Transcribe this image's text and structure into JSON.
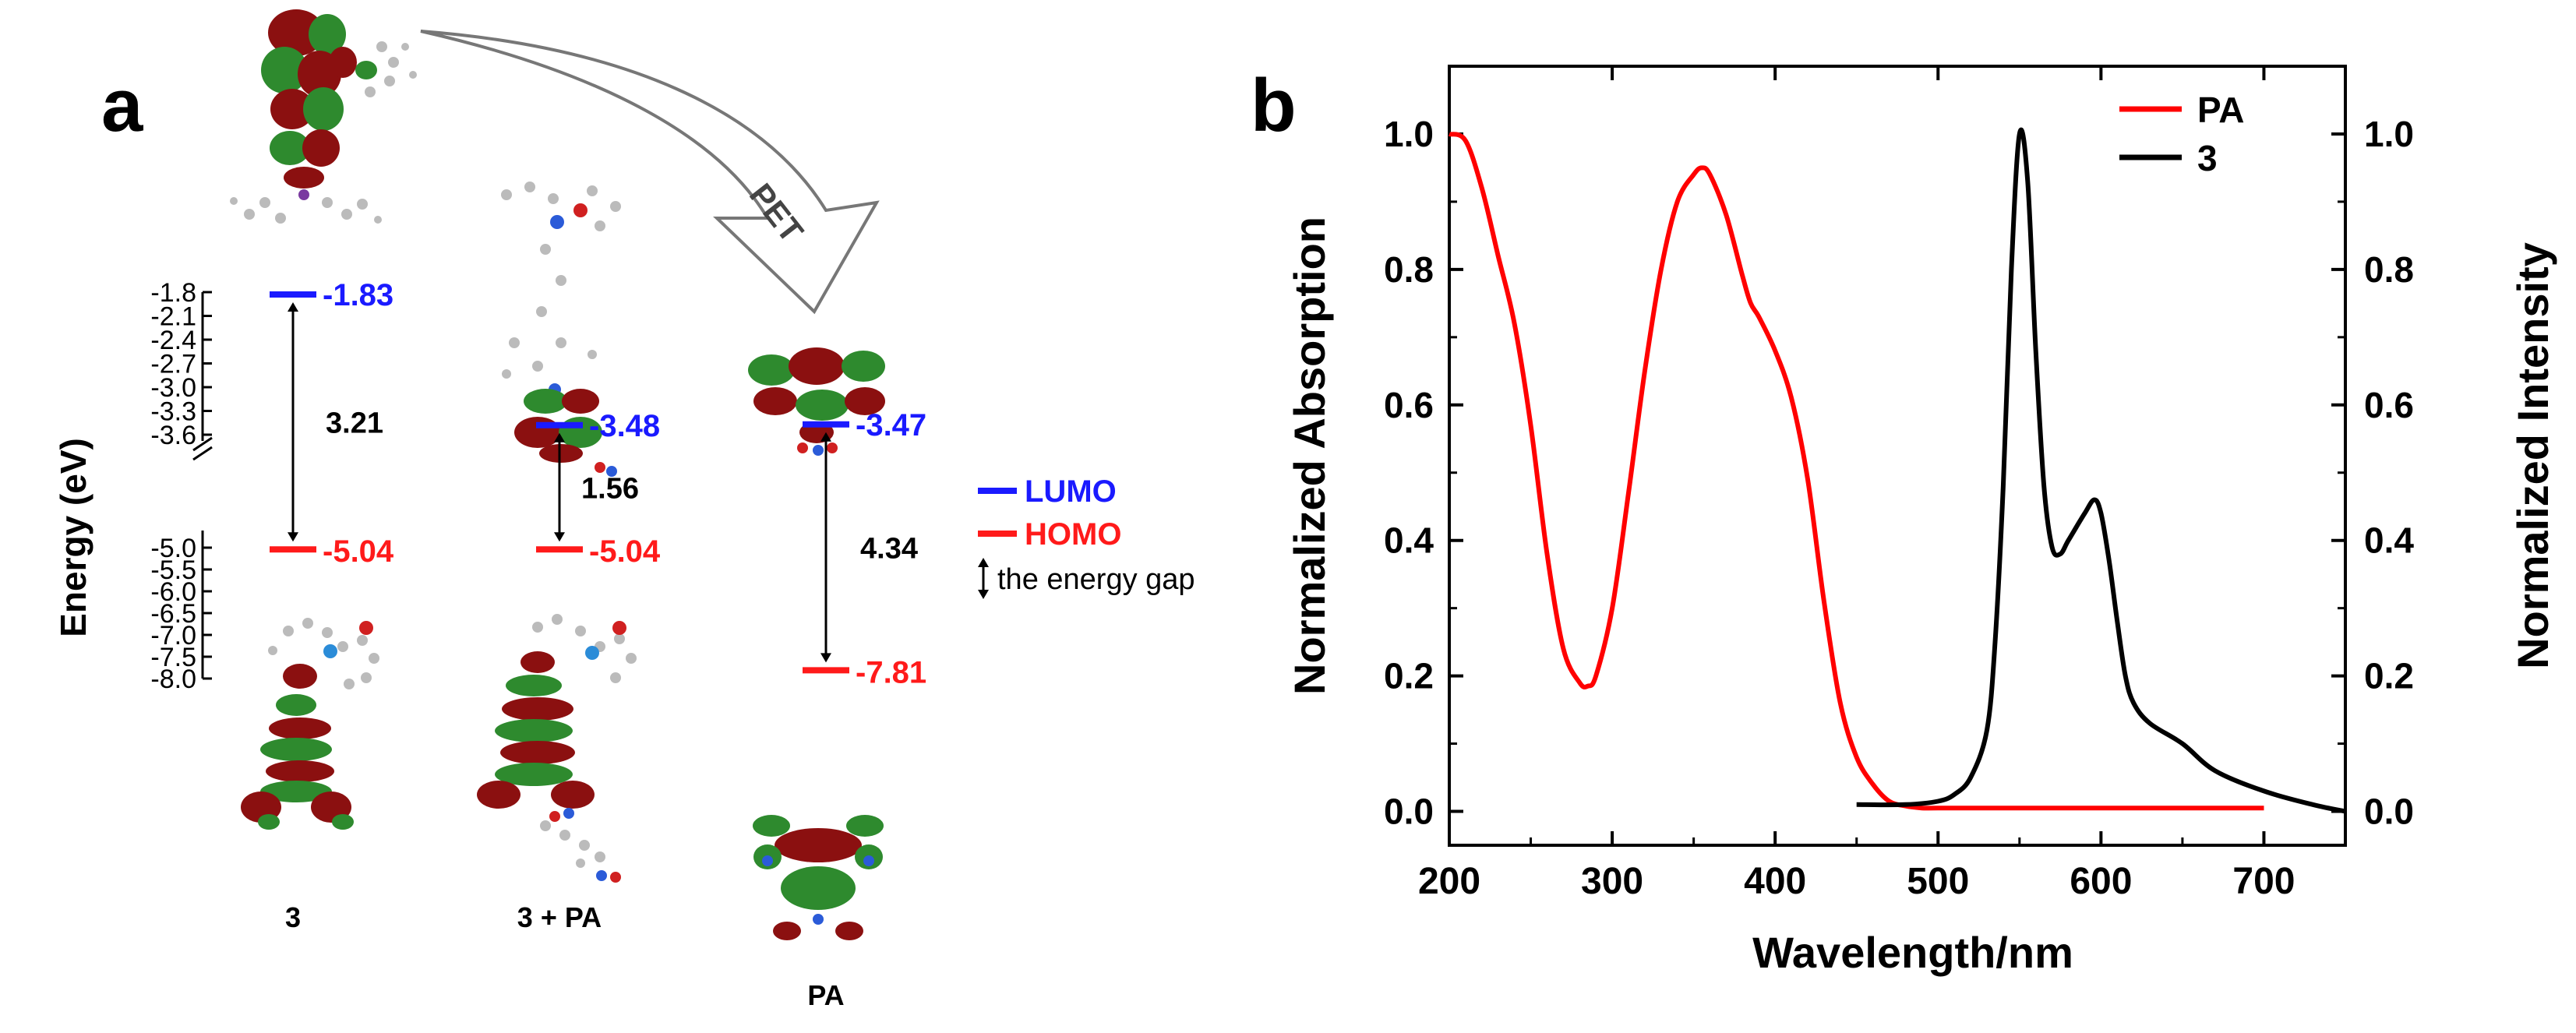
{
  "panel_a": {
    "label": "a",
    "axis_title": "Energy (eV)",
    "ticks_upper": [
      "-1.8",
      "-2.1",
      "-2.4",
      "-2.7",
      "-3.0",
      "-3.3",
      "-3.6"
    ],
    "ticks_lower": [
      "-5.0",
      "-5.5",
      "-6.0",
      "-6.5",
      "-7.0",
      "-7.5",
      "-8.0"
    ],
    "pet_label": "PET",
    "legend": {
      "lumo": "LUMO",
      "homo": "HOMO",
      "gap": "the energy gap"
    },
    "colors": {
      "lumo": "#1a1aff",
      "homo": "#ff1a1a",
      "lobe_red": "#8b1010",
      "lobe_green": "#2e8a2e"
    }
  },
  "panel_b": {
    "label": "b"
  },
  "chart_data": [
    {
      "type": "energy-level",
      "title": "",
      "ylabel": "Energy (eV)",
      "axis_break": [
        -3.6,
        -5.0
      ],
      "systems": [
        {
          "name": "3",
          "lumo": -1.83,
          "homo": -5.04,
          "lumo_label": "-1.83",
          "homo_label": "-5.04",
          "gap_label": "3.21"
        },
        {
          "name": "3 + PA",
          "lumo": -3.48,
          "homo": -5.04,
          "lumo_label": "-3.48",
          "homo_label": "-5.04",
          "gap_label": "1.56"
        },
        {
          "name": "PA",
          "lumo": -3.47,
          "homo": -7.81,
          "lumo_label": "-3.47",
          "homo_label": "-7.81",
          "gap_label": "4.34"
        }
      ]
    },
    {
      "type": "line",
      "title": "",
      "xlabel": "Wavelength/nm",
      "ylabel": "Normalized Absorption",
      "y2label": "Normalized Intensity",
      "xlim": [
        200,
        750
      ],
      "ylim": [
        -0.05,
        1.1
      ],
      "xticks": [
        "200",
        "300",
        "400",
        "500",
        "600",
        "700"
      ],
      "yticks": [
        "0.0",
        "0.2",
        "0.4",
        "0.6",
        "0.8",
        "1.0"
      ],
      "legend_position": "top-right",
      "series": [
        {
          "name": "PA",
          "color": "#ff0000",
          "x": [
            200,
            210,
            220,
            230,
            240,
            250,
            260,
            270,
            280,
            285,
            290,
            300,
            310,
            320,
            330,
            340,
            350,
            355,
            360,
            370,
            380,
            385,
            390,
            400,
            410,
            420,
            430,
            440,
            450,
            460,
            470,
            480,
            490,
            500,
            550,
            600,
            650,
            700
          ],
          "y": [
            1.0,
            0.99,
            0.92,
            0.82,
            0.72,
            0.57,
            0.38,
            0.24,
            0.19,
            0.185,
            0.2,
            0.3,
            0.47,
            0.65,
            0.8,
            0.9,
            0.94,
            0.95,
            0.94,
            0.88,
            0.79,
            0.75,
            0.73,
            0.68,
            0.61,
            0.49,
            0.31,
            0.16,
            0.08,
            0.04,
            0.015,
            0.008,
            0.005,
            0.005,
            0.005,
            0.005,
            0.005,
            0.005
          ]
        },
        {
          "name": "3",
          "color": "#000000",
          "x": [
            450,
            480,
            500,
            510,
            520,
            530,
            535,
            540,
            545,
            550,
            555,
            560,
            565,
            570,
            575,
            580,
            590,
            596,
            600,
            605,
            610,
            615,
            620,
            630,
            650,
            670,
            700,
            730,
            750
          ],
          "y": [
            0.01,
            0.01,
            0.015,
            0.025,
            0.05,
            0.12,
            0.25,
            0.48,
            0.8,
            1.0,
            0.93,
            0.68,
            0.48,
            0.39,
            0.38,
            0.4,
            0.44,
            0.46,
            0.44,
            0.37,
            0.28,
            0.2,
            0.16,
            0.13,
            0.1,
            0.06,
            0.03,
            0.01,
            0.0
          ]
        }
      ]
    }
  ]
}
